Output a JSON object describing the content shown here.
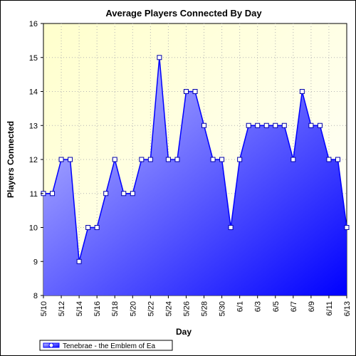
{
  "chart_data": {
    "type": "area",
    "title": "Average Players Connected By Day",
    "xlabel": "Day",
    "ylabel": "Players Connected",
    "ylim": [
      8,
      16
    ],
    "yticks": [
      "8",
      "9",
      "10",
      "11",
      "12",
      "13",
      "14",
      "15",
      "16"
    ],
    "grid": true,
    "legend_position": "bottom-left",
    "x": [
      "5/10",
      "5/11",
      "5/12",
      "5/13",
      "5/14",
      "5/15",
      "5/16",
      "5/17",
      "5/18",
      "5/19",
      "5/20",
      "5/21",
      "5/22",
      "5/23",
      "5/24",
      "5/25",
      "5/26",
      "5/27",
      "5/28",
      "5/29",
      "5/30",
      "5/31",
      "6/1",
      "6/2",
      "6/3",
      "6/4",
      "6/5",
      "6/6",
      "6/7",
      "6/8",
      "6/9",
      "6/10",
      "6/11",
      "6/12",
      "6/13"
    ],
    "xtick_labels": [
      "5/10",
      "5/12",
      "5/14",
      "5/16",
      "5/18",
      "5/20",
      "5/22",
      "5/24",
      "5/26",
      "5/28",
      "5/30",
      "6/1",
      "6/3",
      "6/5",
      "6/7",
      "6/9",
      "6/11",
      "6/13"
    ],
    "series": [
      {
        "name": "Tenebrae - the Emblem of Ea",
        "color": "#0000ff",
        "values": [
          11,
          11,
          12,
          12,
          9,
          10,
          10,
          11,
          12,
          11,
          11,
          12,
          12,
          15,
          12,
          12,
          14,
          14,
          13,
          12,
          12,
          10,
          12,
          13,
          13,
          13,
          13,
          13,
          12,
          14,
          13,
          13,
          12,
          12,
          10
        ]
      }
    ],
    "colors": {
      "background_top": "#ffffcc",
      "background_bottom": "#ffffff",
      "fill_start": "#c8c8ff",
      "fill_end": "#0000ff",
      "line": "#0000ff"
    }
  }
}
